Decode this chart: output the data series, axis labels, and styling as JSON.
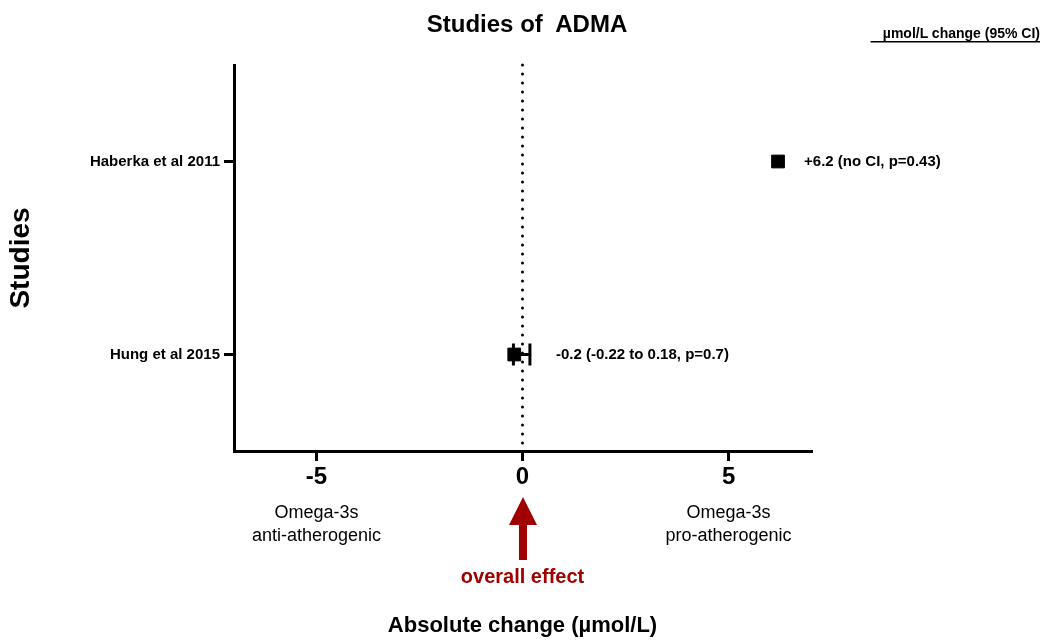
{
  "chart_data": {
    "type": "scatter",
    "orientation": "horizontal",
    "title": "Studies of  ADMA",
    "ylabel": "Studies",
    "categories": [
      "Haberka et al 2011",
      "Hung et al 2015"
    ],
    "values": [
      6.2,
      -0.2
    ],
    "errors": [
      null,
      [
        -0.22,
        0.18
      ]
    ],
    "color": "#000000",
    "marker": "square",
    "value_labels": [
      "+6.2 (no CI, p=0.43)",
      "-0.2 (-0.22 to 0.18, p=0.7)"
    ],
    "xlim": [
      -7,
      7
    ],
    "xticks": [
      -5,
      0,
      5
    ],
    "grid": false,
    "legend": false,
    "ref_lines": [
      {
        "axis": "x",
        "value": 0,
        "color": "#000000",
        "line_style": "dotted"
      }
    ],
    "annotations": [
      "µmol/L change (95% CI)",
      "Omega-3s anti-atherogenic",
      "Omega-3s pro-atherogenic",
      "overall effect",
      "Absolute change (µmol/L)"
    ]
  }
}
